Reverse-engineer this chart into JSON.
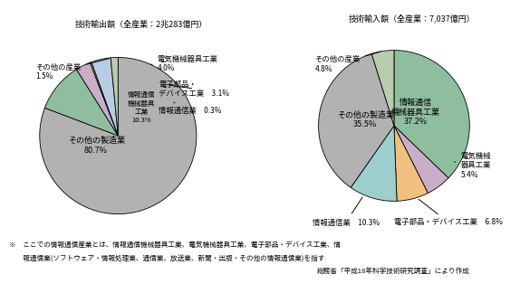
{
  "title_left": "技術輸出額（全産業：2兆283億円）",
  "title_right": "技術輸入額（全産業：7,037億円）",
  "left_values": [
    80.7,
    10.3,
    3.1,
    0.3,
    4.0,
    1.5
  ],
  "left_colors": [
    "#b2b2b2",
    "#8fbe9f",
    "#c9aec9",
    "#f0c080",
    "#b8cce4",
    "#b8ccb0"
  ],
  "right_values": [
    37.2,
    5.4,
    6.8,
    10.3,
    35.5,
    4.8
  ],
  "right_colors": [
    "#8fbe9f",
    "#c9aec9",
    "#f0c080",
    "#9ecfcf",
    "#b2b2b2",
    "#b8ccb0"
  ],
  "footnote1": "※　ここでの情報通信産業とは、情報通信機械器具工業、電気機械器具工業、電子部品・デバイス工業、情",
  "footnote2": "　　報通信業(ソフトウェア・情報処理業、通信業、放送業、新聞・出版・その他の情報通信業)を指す",
  "footnote3": "総務省「平成18年科学技術研究調査」により作成",
  "bg_color": "#ffffff"
}
